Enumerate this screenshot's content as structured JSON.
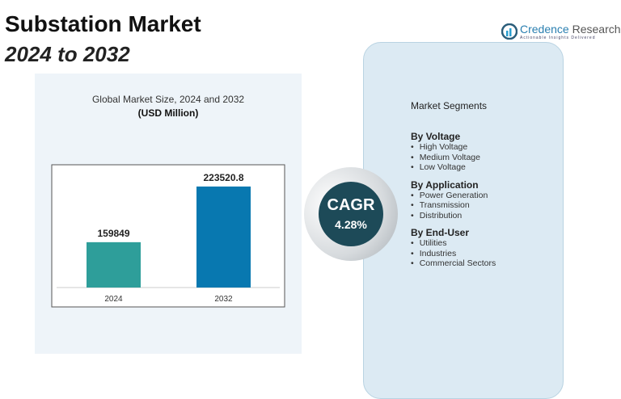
{
  "header": {
    "title": "Substation Market",
    "subtitle": "2024 to 2032"
  },
  "logo": {
    "name_part1": "Credence",
    "name_part2": "Research",
    "tagline": "Actionable Insights Delivered",
    "icon": "bar-chart-logo-icon"
  },
  "cagr": {
    "label": "CAGR",
    "value": "4.28%"
  },
  "segments": {
    "title": "Market Segments",
    "groups": [
      {
        "name": "By Voltage",
        "items": [
          "High Voltage",
          "Medium Voltage",
          "Low Voltage"
        ]
      },
      {
        "name": "By Application",
        "items": [
          "Power Generation",
          "Transmission",
          "Distribution"
        ]
      },
      {
        "name": "By End-User",
        "items": [
          "Utilities",
          "Industries",
          "Commercial Sectors"
        ]
      }
    ]
  },
  "colors": {
    "bar_2024": "#2e9e9a",
    "bar_2032": "#0878b0",
    "cagr_circle": "#1d4a58"
  },
  "chart_data": {
    "type": "bar",
    "title": "Global Market Size, 2024 and 2032",
    "unit": "(USD Million)",
    "categories": [
      "2024",
      "2032"
    ],
    "values": [
      159849,
      223520.8
    ],
    "data_labels": [
      "159849",
      "223520.8"
    ],
    "ylim": [
      108000,
      241000
    ],
    "grid": false,
    "legend": "none"
  }
}
